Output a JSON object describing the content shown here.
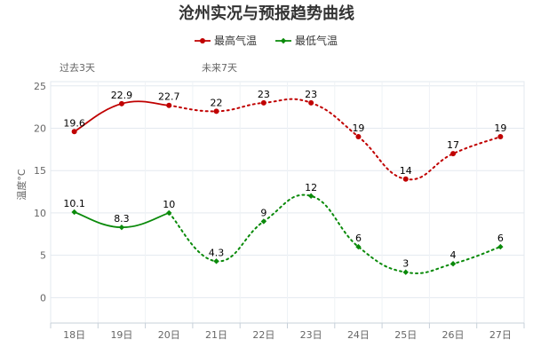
{
  "chart_data": {
    "type": "line",
    "title": "沧州实况与预报趋势曲线",
    "ylabel": "温度°C",
    "categories": [
      "18日",
      "19日",
      "20日",
      "21日",
      "22日",
      "23日",
      "24日",
      "25日",
      "26日",
      "27日"
    ],
    "ylim": [
      -3,
      25.5
    ],
    "yticks": [
      0,
      5,
      10,
      15,
      20,
      25
    ],
    "grid": true,
    "legend_position": "top-center",
    "periods": [
      {
        "label": "过去3天",
        "start_index": 0,
        "end_index": 2
      },
      {
        "label": "未来7天",
        "start_index": 3,
        "end_index": 9
      }
    ],
    "observed_until_index": 2,
    "series": [
      {
        "name": "最高气温",
        "color": "#c00000",
        "marker": "circle",
        "values": [
          19.6,
          22.9,
          22.7,
          22,
          23,
          23,
          19,
          14,
          17,
          19
        ],
        "labels": [
          "19.6",
          "22.9",
          "22.7",
          "22",
          "23",
          "23",
          "19",
          "14",
          "17",
          "19"
        ]
      },
      {
        "name": "最低气温",
        "color": "#0a8a0a",
        "marker": "diamond",
        "values": [
          10.1,
          8.3,
          10,
          4.3,
          9,
          12,
          6,
          3,
          4,
          6
        ],
        "labels": [
          "10.1",
          "8.3",
          "10",
          "4.3",
          "9",
          "12",
          "6",
          "3",
          "4",
          "6"
        ]
      }
    ]
  }
}
